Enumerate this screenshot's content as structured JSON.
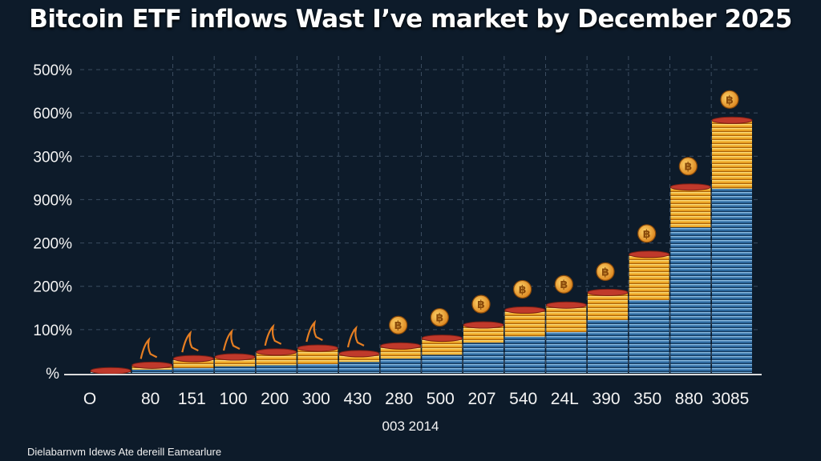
{
  "chart_data": {
    "type": "bar",
    "title": "Bitcoin ETF inflows Wast I’ve market by December 2025",
    "xlabel": "003 2014",
    "ylabel": "",
    "y_tick_labels": [
      "500%",
      "600%",
      "300%",
      "900%",
      "200%",
      "200%",
      "100%",
      "%"
    ],
    "categories": [
      "O",
      "80",
      "151",
      "100",
      "200",
      "300",
      "430",
      "280",
      "500",
      "207",
      "540",
      "24L",
      "390",
      "350",
      "880",
      "3085"
    ],
    "series": [
      {
        "name": "blue coins",
        "values": [
          1,
          6,
          9,
          12,
          14,
          16,
          20,
          26,
          33,
          55,
          66,
          74,
          96,
          132,
          264,
          334
        ]
      },
      {
        "name": "gold coins",
        "values": [
          3,
          8,
          17,
          17,
          24,
          29,
          15,
          23,
          30,
          32,
          48,
          49,
          50,
          83,
          73,
          124
        ]
      }
    ],
    "ylim": [
      0,
      560
    ],
    "grid": true
  },
  "footnote": "Dielabarnvm Idews Ate dereill Eamearlure",
  "colors": {
    "background": "#0d1b2a",
    "grid": "#3b4c60",
    "blue_coin": "#2f6fa6",
    "gold_coin": "#f2b134",
    "coin_top": "#c0392b",
    "icon_coin": "#f5a623",
    "arrow": "#e67e22"
  }
}
